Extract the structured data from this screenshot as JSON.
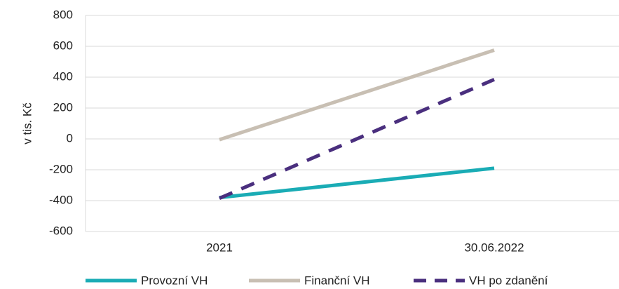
{
  "chart_data": {
    "type": "line",
    "y_label": "v tis. Kč",
    "categories": [
      "2021",
      "30.06.2022"
    ],
    "series": [
      {
        "name": "Provozní VH",
        "color": "#1aacb5",
        "dash": false,
        "values": [
          -380,
          -190
        ]
      },
      {
        "name": "Finanční VH",
        "color": "#c8bfb3",
        "dash": false,
        "values": [
          -5,
          575
        ]
      },
      {
        "name": "VH po zdanění",
        "color": "#4a2f7e",
        "dash": true,
        "values": [
          -385,
          385
        ]
      }
    ],
    "ylim": [
      -600,
      800
    ],
    "yticks": [
      -600,
      -400,
      -200,
      0,
      200,
      400,
      600,
      800
    ],
    "grid": true
  }
}
